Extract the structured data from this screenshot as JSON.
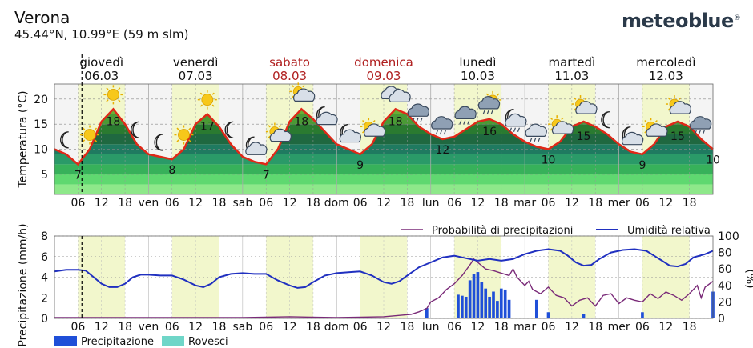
{
  "header": {
    "city": "Verona",
    "coordinates": "45.44°N, 10.99°E (59 m slm)",
    "logo": "meteoblue",
    "logo_mark": "®"
  },
  "chart_data": [
    {
      "type": "area",
      "ylabel": "Temperatura (°C)",
      "ylim": [
        1,
        23
      ],
      "yticks": [
        5,
        10,
        15,
        20
      ],
      "grid": true,
      "days": [
        {
          "name": "giovedì",
          "date": "06.03",
          "weekend": false,
          "icons": [
            "moon-icon",
            "sun-icon",
            "sun-icon",
            "moon-icon"
          ]
        },
        {
          "name": "venerdì",
          "date": "07.03",
          "weekend": false,
          "icons": [
            "moon-icon",
            "sun-icon",
            "sun-icon",
            "moon-icon"
          ]
        },
        {
          "name": "sabato",
          "date": "08.03",
          "weekend": true,
          "icons": [
            "moon-cloud-icon",
            "sun-cloud-icon",
            "sun-cloud-icon",
            "moon-cloud-icon"
          ]
        },
        {
          "name": "domenica",
          "date": "09.03",
          "weekend": true,
          "icons": [
            "moon-cloud-icon",
            "sun-cloud-icon",
            "cloud-icon",
            "rain-icon"
          ]
        },
        {
          "name": "lunedì",
          "date": "10.03",
          "weekend": false,
          "icons": [
            "rain-icon",
            "rain-icon",
            "sun-rain-icon",
            "moon-rain-icon"
          ]
        },
        {
          "name": "martedì",
          "date": "11.03",
          "weekend": false,
          "icons": [
            "cloud-rain-icon",
            "sun-cloud-icon",
            "sun-cloud-icon",
            "moon-icon"
          ]
        },
        {
          "name": "mercoledì",
          "date": "12.03",
          "weekend": false,
          "icons": [
            "moon-cloud-icon",
            "sun-cloud-icon",
            "sun-cloud-icon",
            "rain-icon"
          ]
        }
      ],
      "x_tick_labels": [
        "06",
        "12",
        "18",
        "ven",
        "06",
        "12",
        "18",
        "sab",
        "06",
        "12",
        "18",
        "dom",
        "06",
        "12",
        "18",
        "lun",
        "06",
        "12",
        "18",
        "mar",
        "06",
        "12",
        "18",
        "mer",
        "06",
        "12",
        "18"
      ],
      "temperature_series": [
        [
          0,
          10
        ],
        [
          3,
          9
        ],
        [
          6,
          7
        ],
        [
          9,
          10
        ],
        [
          12,
          15.5
        ],
        [
          15,
          18
        ],
        [
          18,
          15
        ],
        [
          21,
          11
        ],
        [
          24,
          9
        ],
        [
          27,
          8.5
        ],
        [
          30,
          8
        ],
        [
          33,
          10
        ],
        [
          36,
          15
        ],
        [
          39,
          17
        ],
        [
          42,
          14.5
        ],
        [
          45,
          11
        ],
        [
          48,
          8.5
        ],
        [
          51,
          7.5
        ],
        [
          54,
          7
        ],
        [
          57,
          10
        ],
        [
          60,
          15.5
        ],
        [
          63,
          18
        ],
        [
          66,
          16
        ],
        [
          69,
          13.5
        ],
        [
          72,
          11
        ],
        [
          75,
          10
        ],
        [
          78,
          9
        ],
        [
          81,
          11
        ],
        [
          84,
          15.5
        ],
        [
          87,
          18
        ],
        [
          90,
          17
        ],
        [
          93,
          14.5
        ],
        [
          96,
          13
        ],
        [
          99,
          12
        ],
        [
          102,
          12.5
        ],
        [
          105,
          14
        ],
        [
          108,
          15.5
        ],
        [
          111,
          16
        ],
        [
          114,
          15
        ],
        [
          117,
          13
        ],
        [
          120,
          11.5
        ],
        [
          123,
          10.5
        ],
        [
          126,
          10
        ],
        [
          129,
          11.5
        ],
        [
          132,
          14.5
        ],
        [
          135,
          15.5
        ],
        [
          138,
          14.5
        ],
        [
          141,
          13
        ],
        [
          144,
          11
        ],
        [
          147,
          9.5
        ],
        [
          150,
          9
        ],
        [
          153,
          11
        ],
        [
          156,
          14.5
        ],
        [
          159,
          15.5
        ],
        [
          162,
          14.5
        ],
        [
          165,
          12
        ],
        [
          168,
          10
        ]
      ],
      "labels": [
        {
          "t": 6,
          "v": "7",
          "kind": "min"
        },
        {
          "t": 15,
          "v": "18",
          "kind": "max"
        },
        {
          "t": 30,
          "v": "8",
          "kind": "min"
        },
        {
          "t": 39,
          "v": "17",
          "kind": "max"
        },
        {
          "t": 54,
          "v": "7",
          "kind": "min"
        },
        {
          "t": 63,
          "v": "18",
          "kind": "max"
        },
        {
          "t": 78,
          "v": "9",
          "kind": "min"
        },
        {
          "t": 87,
          "v": "18",
          "kind": "max"
        },
        {
          "t": 99,
          "v": "12",
          "kind": "min"
        },
        {
          "t": 111,
          "v": "16",
          "kind": "max"
        },
        {
          "t": 126,
          "v": "10",
          "kind": "min"
        },
        {
          "t": 135,
          "v": "15",
          "kind": "max"
        },
        {
          "t": 150,
          "v": "9",
          "kind": "min"
        },
        {
          "t": 159,
          "v": "15",
          "kind": "max"
        },
        {
          "t": 168,
          "v": "10",
          "kind": "min"
        }
      ],
      "colors": {
        "line": "#e02818",
        "weekday": "#111111",
        "weekend": "#b02020"
      }
    },
    {
      "type": "bar",
      "ylabel": "Precipitazione (mm/h)",
      "ylim": [
        0,
        8
      ],
      "yticks": [
        0,
        2,
        4,
        6,
        8
      ],
      "y2label": "(%)",
      "y2lim": [
        0,
        100
      ],
      "y2ticks": [
        0,
        20,
        40,
        60,
        80,
        100
      ],
      "grid": true,
      "legend": "top-right",
      "x_tick_labels": [
        "06",
        "12",
        "18",
        "ven",
        "06",
        "12",
        "18",
        "sab",
        "06",
        "12",
        "18",
        "dom",
        "06",
        "12",
        "18",
        "lun",
        "06",
        "12",
        "18",
        "mar",
        "06",
        "12",
        "18",
        "mer",
        "06",
        "12",
        "18"
      ],
      "series": [
        {
          "name": "Probabilità di precipitazioni",
          "color": "#7a2a78",
          "kind": "line",
          "points": [
            [
              0,
              1
            ],
            [
              12,
              1
            ],
            [
              24,
              1
            ],
            [
              36,
              1
            ],
            [
              48,
              1
            ],
            [
              60,
              2
            ],
            [
              72,
              1
            ],
            [
              84,
              2
            ],
            [
              91,
              5
            ],
            [
              93,
              8
            ],
            [
              95,
              12
            ],
            [
              96,
              20
            ],
            [
              98,
              25
            ],
            [
              100,
              35
            ],
            [
              102,
              42
            ],
            [
              104,
              52
            ],
            [
              106,
              65
            ],
            [
              107,
              72
            ],
            [
              108,
              68
            ],
            [
              110,
              60
            ],
            [
              112,
              58
            ],
            [
              114,
              55
            ],
            [
              116,
              52
            ],
            [
              117,
              60
            ],
            [
              118,
              50
            ],
            [
              120,
              40
            ],
            [
              121,
              45
            ],
            [
              122,
              35
            ],
            [
              124,
              30
            ],
            [
              126,
              38
            ],
            [
              128,
              28
            ],
            [
              130,
              25
            ],
            [
              132,
              15
            ],
            [
              134,
              22
            ],
            [
              136,
              25
            ],
            [
              138,
              15
            ],
            [
              140,
              28
            ],
            [
              142,
              30
            ],
            [
              144,
              18
            ],
            [
              146,
              25
            ],
            [
              148,
              22
            ],
            [
              150,
              20
            ],
            [
              152,
              30
            ],
            [
              154,
              24
            ],
            [
              156,
              32
            ],
            [
              158,
              28
            ],
            [
              160,
              22
            ],
            [
              162,
              30
            ],
            [
              164,
              40
            ],
            [
              165,
              25
            ],
            [
              166,
              38
            ],
            [
              168,
              45
            ]
          ]
        },
        {
          "name": "Umidità relativa",
          "color": "#2030c0",
          "kind": "line",
          "points": [
            [
              0,
              57
            ],
            [
              3,
              59
            ],
            [
              6,
              59
            ],
            [
              8,
              58
            ],
            [
              10,
              50
            ],
            [
              12,
              42
            ],
            [
              14,
              38
            ],
            [
              16,
              38
            ],
            [
              18,
              42
            ],
            [
              20,
              50
            ],
            [
              22,
              53
            ],
            [
              24,
              53
            ],
            [
              27,
              52
            ],
            [
              30,
              52
            ],
            [
              33,
              47
            ],
            [
              36,
              40
            ],
            [
              38,
              38
            ],
            [
              40,
              42
            ],
            [
              42,
              50
            ],
            [
              45,
              54
            ],
            [
              48,
              55
            ],
            [
              51,
              54
            ],
            [
              54,
              54
            ],
            [
              57,
              46
            ],
            [
              60,
              40
            ],
            [
              62,
              37
            ],
            [
              64,
              38
            ],
            [
              66,
              44
            ],
            [
              69,
              52
            ],
            [
              72,
              55
            ],
            [
              75,
              56
            ],
            [
              78,
              57
            ],
            [
              81,
              52
            ],
            [
              84,
              44
            ],
            [
              86,
              42
            ],
            [
              88,
              45
            ],
            [
              90,
              52
            ],
            [
              93,
              62
            ],
            [
              96,
              68
            ],
            [
              99,
              74
            ],
            [
              102,
              76
            ],
            [
              105,
              73
            ],
            [
              108,
              70
            ],
            [
              111,
              72
            ],
            [
              114,
              70
            ],
            [
              117,
              72
            ],
            [
              120,
              78
            ],
            [
              123,
              82
            ],
            [
              126,
              84
            ],
            [
              129,
              82
            ],
            [
              131,
              76
            ],
            [
              133,
              68
            ],
            [
              135,
              64
            ],
            [
              137,
              65
            ],
            [
              139,
              72
            ],
            [
              142,
              80
            ],
            [
              145,
              83
            ],
            [
              148,
              84
            ],
            [
              151,
              82
            ],
            [
              153,
              76
            ],
            [
              155,
              70
            ],
            [
              157,
              64
            ],
            [
              159,
              63
            ],
            [
              161,
              66
            ],
            [
              163,
              74
            ],
            [
              166,
              78
            ],
            [
              168,
              82
            ]
          ]
        },
        {
          "name": "Precipitazione",
          "color": "#1f4fd8",
          "kind": "bar",
          "points": [
            [
              95,
              1.0
            ],
            [
              103,
              2.3
            ],
            [
              104,
              2.2
            ],
            [
              105,
              2.1
            ],
            [
              106,
              3.7
            ],
            [
              107,
              4.3
            ],
            [
              108,
              4.5
            ],
            [
              109,
              3.5
            ],
            [
              110,
              2.9
            ],
            [
              111,
              2.1
            ],
            [
              112,
              2.6
            ],
            [
              113,
              1.7
            ],
            [
              114,
              2.9
            ],
            [
              115,
              2.8
            ],
            [
              116,
              1.8
            ],
            [
              123,
              1.8
            ],
            [
              126,
              0.6
            ],
            [
              135,
              0.4
            ],
            [
              150,
              0.6
            ],
            [
              168,
              2.6
            ]
          ]
        },
        {
          "name": "Rovesci",
          "color": "#6fd6c8",
          "kind": "bar",
          "points": []
        }
      ]
    }
  ]
}
